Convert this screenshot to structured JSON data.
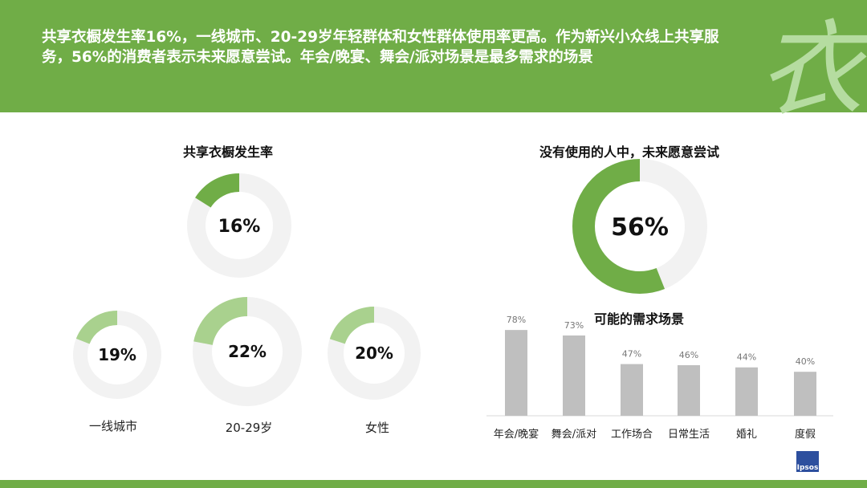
{
  "header": {
    "headline": "共享衣橱发生率16%，一线城市、20-29岁年轻群体和女性群体使用率更高。作为新兴小众线上共享服务，56%的消费者表示未来愿意尝试。年会/晚宴、舞会/派对场景是最多需求的场景",
    "logo_char": "衣"
  },
  "chart_data": [
    {
      "type": "pie",
      "title": "共享衣橱发生率",
      "values": [
        16
      ],
      "labels": [
        "16%"
      ],
      "color": "#70ad47"
    },
    {
      "type": "pie",
      "title": "",
      "segments": [
        {
          "name": "一线城市",
          "value": 19,
          "label": "19%"
        },
        {
          "name": "20-29岁",
          "value": 22,
          "label": "22%"
        },
        {
          "name": "女性",
          "value": 20,
          "label": "20%"
        }
      ],
      "color": "#a9d18e"
    },
    {
      "type": "pie",
      "title": "没有使用的人中，未来愿意尝试",
      "values": [
        56
      ],
      "labels": [
        "56%"
      ],
      "color": "#70ad47"
    },
    {
      "type": "bar",
      "title": "可能的需求场景",
      "categories": [
        "年会/晚宴",
        "舞会/派对",
        "工作场合",
        "日常生活",
        "婚礼",
        "度假"
      ],
      "values": [
        78,
        73,
        47,
        46,
        44,
        40
      ],
      "value_labels": [
        "78%",
        "73%",
        "47%",
        "46%",
        "44%",
        "40%"
      ],
      "color": "#bfbfbf",
      "ylim": [
        0,
        100
      ]
    }
  ],
  "brand": {
    "logo_text": "Ipsos"
  }
}
